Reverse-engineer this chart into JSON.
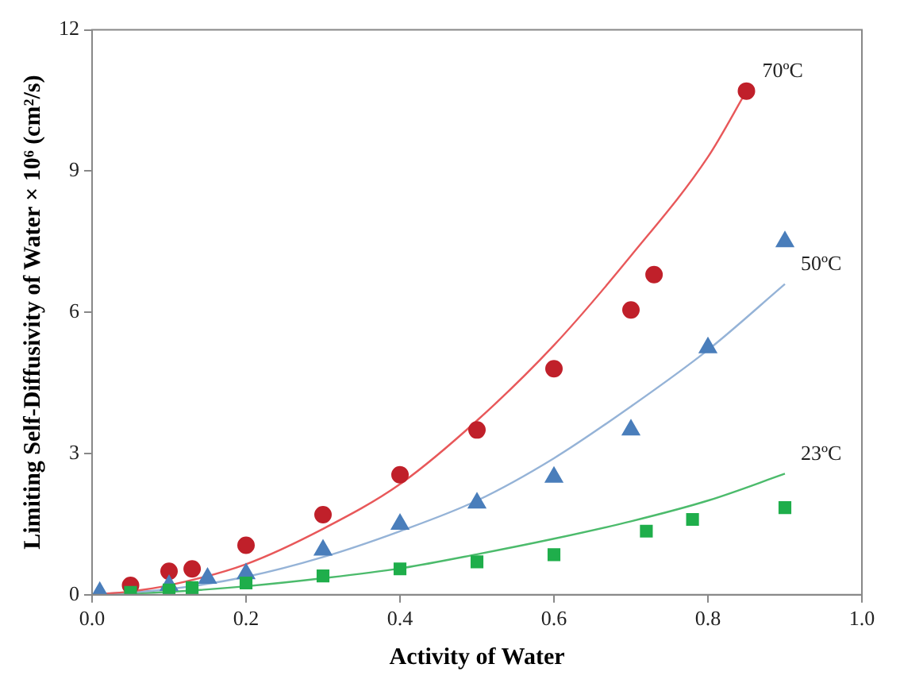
{
  "chart_data": {
    "type": "scatter",
    "xlabel": "Activity of Water",
    "ylabel": "Limiting Self-Diffusivity of Water × 10⁶ (cm²/s)",
    "xlim": [
      0,
      1
    ],
    "xticks": [
      {
        "value": 0,
        "label": "0.0"
      },
      0.2,
      0.4,
      0.6,
      0.8,
      {
        "value": 1,
        "label": "1.0"
      }
    ],
    "ylim": [
      0,
      12
    ],
    "yticks": [
      0,
      3,
      6,
      9,
      12
    ],
    "series": [
      {
        "name": "70ºC",
        "type": "scatter",
        "marker": "circle",
        "color": "#c0202a",
        "x": [
          0.05,
          0.1,
          0.13,
          0.2,
          0.3,
          0.4,
          0.5,
          0.6,
          0.7,
          0.73,
          0.85
        ],
        "values": [
          0.2,
          0.5,
          0.55,
          1.05,
          1.7,
          2.55,
          3.5,
          4.8,
          6.05,
          6.8,
          10.7
        ]
      },
      {
        "name": "50ºC",
        "type": "scatter",
        "marker": "triangle",
        "color": "#4a7ebb",
        "x": [
          0.01,
          0.1,
          0.15,
          0.2,
          0.3,
          0.4,
          0.5,
          0.6,
          0.7,
          0.8,
          0.9
        ],
        "values": [
          0.05,
          0.2,
          0.35,
          0.45,
          0.95,
          1.5,
          1.95,
          2.5,
          3.5,
          5.25,
          7.5
        ]
      },
      {
        "name": "23ºC",
        "type": "scatter",
        "marker": "square",
        "color": "#1fae4b",
        "x": [
          0.05,
          0.1,
          0.13,
          0.2,
          0.3,
          0.4,
          0.5,
          0.6,
          0.72,
          0.78,
          0.9
        ],
        "values": [
          0.05,
          0.1,
          0.15,
          0.25,
          0.4,
          0.55,
          0.7,
          0.85,
          1.35,
          1.6,
          1.85
        ]
      },
      {
        "type": "line",
        "marker": "none",
        "color": "#e8585a",
        "x": [
          0,
          0.05,
          0.1,
          0.2,
          0.3,
          0.4,
          0.5,
          0.6,
          0.7,
          0.8,
          0.85
        ],
        "values": [
          0,
          0.07,
          0.2,
          0.65,
          1.4,
          2.35,
          3.7,
          5.3,
          7.2,
          9.3,
          10.7
        ]
      },
      {
        "type": "line",
        "marker": "none",
        "color": "#95b3d7",
        "x": [
          0,
          0.1,
          0.2,
          0.3,
          0.4,
          0.5,
          0.6,
          0.7,
          0.8,
          0.9
        ],
        "values": [
          0,
          0.12,
          0.38,
          0.8,
          1.35,
          2.0,
          2.9,
          4.0,
          5.2,
          6.6
        ]
      },
      {
        "type": "line",
        "marker": "none",
        "color": "#4cbb6c",
        "x": [
          0,
          0.1,
          0.2,
          0.3,
          0.4,
          0.5,
          0.6,
          0.7,
          0.8,
          0.9
        ],
        "values": [
          0,
          0.06,
          0.18,
          0.35,
          0.56,
          0.86,
          1.19,
          1.56,
          2.0,
          2.57
        ]
      }
    ]
  }
}
